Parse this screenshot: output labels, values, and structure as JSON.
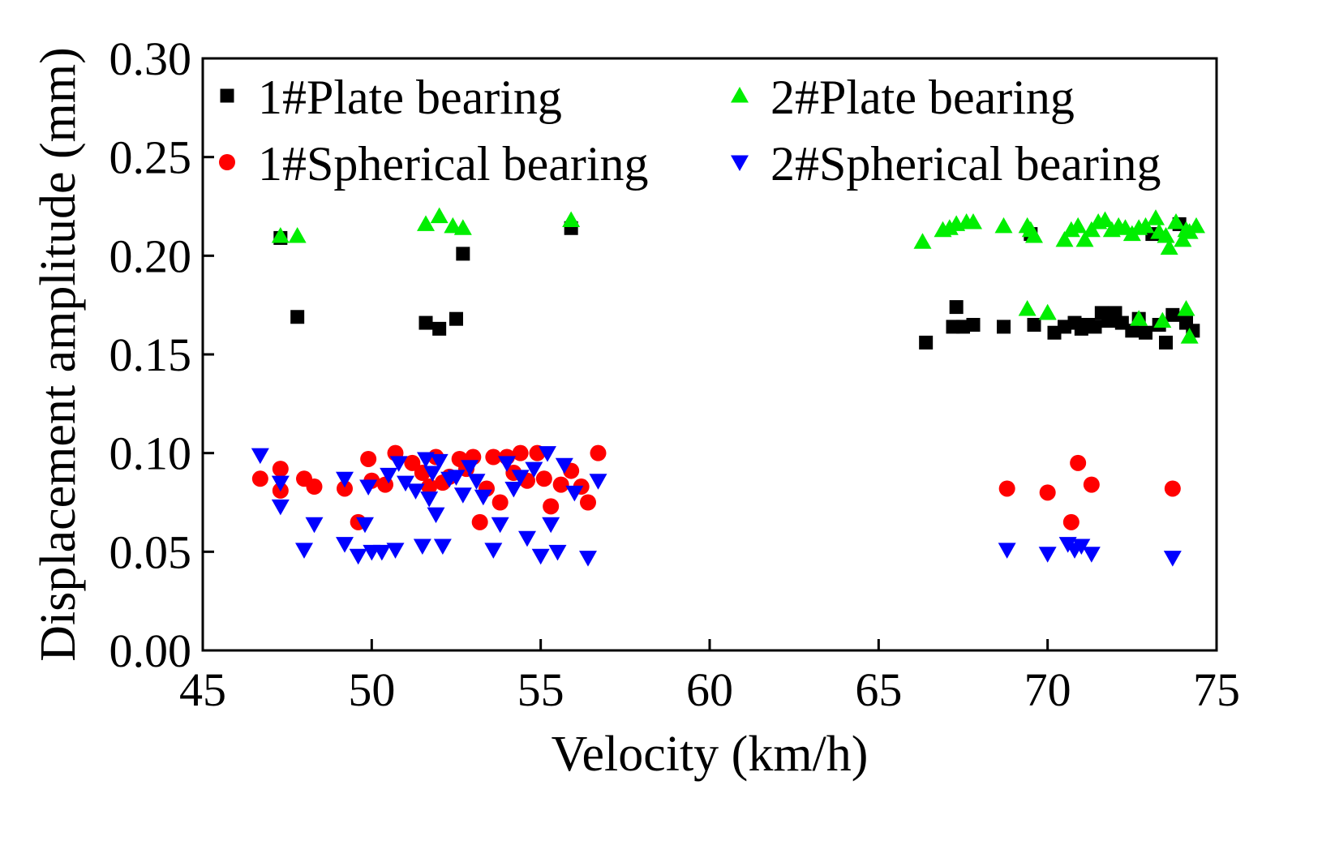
{
  "chart_data": {
    "type": "scatter",
    "title": "",
    "xlabel": "Velocity (km/h)",
    "ylabel": "Displacement amplitude (mm)",
    "xlim": [
      45,
      75
    ],
    "ylim": [
      0,
      0.3
    ],
    "xticks": [
      45,
      50,
      55,
      60,
      65,
      70,
      75
    ],
    "yticks": [
      0.0,
      0.05,
      0.1,
      0.15,
      0.2,
      0.25,
      0.3
    ],
    "xtick_labels": [
      "45",
      "50",
      "55",
      "60",
      "65",
      "70",
      "75"
    ],
    "ytick_labels": [
      "0.00",
      "0.05",
      "0.10",
      "0.15",
      "0.20",
      "0.25",
      "0.30"
    ],
    "grid": false,
    "legend_placement": "top, two columns",
    "series": [
      {
        "name": "1#Plate bearing",
        "marker": "square",
        "color": "#000000",
        "x": [
          47.3,
          47.8,
          51.6,
          52.0,
          52.5,
          52.7,
          55.9,
          66.4,
          67.2,
          67.3,
          67.5,
          67.8,
          68.7,
          69.5,
          69.6,
          70.2,
          70.5,
          70.8,
          71.0,
          71.2,
          71.4,
          71.6,
          71.8,
          72.0,
          72.2,
          72.5,
          72.7,
          72.9,
          73.1,
          73.3,
          73.5,
          73.7,
          73.9,
          74.1,
          74.3
        ],
        "y": [
          0.209,
          0.169,
          0.166,
          0.163,
          0.168,
          0.201,
          0.214,
          0.156,
          0.164,
          0.174,
          0.164,
          0.165,
          0.164,
          0.211,
          0.165,
          0.161,
          0.164,
          0.166,
          0.163,
          0.165,
          0.164,
          0.171,
          0.167,
          0.171,
          0.166,
          0.162,
          0.168,
          0.161,
          0.211,
          0.165,
          0.156,
          0.17,
          0.216,
          0.166,
          0.162
        ]
      },
      {
        "name": "1#Spherical bearing",
        "marker": "circle",
        "color": "#ff0000",
        "x": [
          46.7,
          47.3,
          47.3,
          48.0,
          48.3,
          49.2,
          49.6,
          49.9,
          50.0,
          50.4,
          50.7,
          51.2,
          51.5,
          51.7,
          51.9,
          52.1,
          52.3,
          52.6,
          52.8,
          53.0,
          53.2,
          53.4,
          53.6,
          53.8,
          54.0,
          54.2,
          54.4,
          54.6,
          54.9,
          55.1,
          55.3,
          55.6,
          55.9,
          56.2,
          56.4,
          56.7,
          68.8,
          70.0,
          70.7,
          70.9,
          71.3,
          73.7
        ],
        "y": [
          0.087,
          0.092,
          0.081,
          0.087,
          0.083,
          0.082,
          0.065,
          0.097,
          0.086,
          0.084,
          0.1,
          0.095,
          0.09,
          0.083,
          0.098,
          0.085,
          0.088,
          0.097,
          0.092,
          0.098,
          0.065,
          0.082,
          0.098,
          0.075,
          0.098,
          0.09,
          0.1,
          0.086,
          0.1,
          0.087,
          0.073,
          0.084,
          0.091,
          0.083,
          0.075,
          0.1,
          0.082,
          0.08,
          0.065,
          0.095,
          0.084,
          0.082
        ]
      },
      {
        "name": "2#Plate bearing",
        "marker": "triangle-up",
        "color": "#00ee00",
        "x": [
          47.3,
          47.8,
          51.6,
          52.0,
          52.4,
          52.7,
          55.9,
          66.3,
          66.9,
          67.1,
          67.3,
          67.6,
          67.8,
          68.7,
          69.4,
          69.5,
          69.6,
          70.0,
          70.5,
          70.7,
          70.9,
          71.1,
          71.3,
          71.5,
          71.7,
          71.9,
          72.1,
          72.3,
          72.5,
          72.7,
          72.9,
          73.2,
          73.3,
          73.5,
          73.6,
          73.8,
          74.0,
          74.1,
          74.2,
          74.4,
          69.4,
          70.0,
          72.7,
          73.4,
          74.1,
          74.2
        ],
        "y": [
          0.21,
          0.21,
          0.216,
          0.22,
          0.215,
          0.214,
          0.218,
          0.207,
          0.213,
          0.214,
          0.216,
          0.217,
          0.217,
          0.215,
          0.215,
          0.213,
          0.21,
          0.171,
          0.208,
          0.213,
          0.215,
          0.208,
          0.213,
          0.217,
          0.218,
          0.213,
          0.215,
          0.214,
          0.211,
          0.214,
          0.215,
          0.219,
          0.212,
          0.21,
          0.204,
          0.217,
          0.208,
          0.213,
          0.212,
          0.215,
          0.173,
          0.171,
          0.168,
          0.167,
          0.173,
          0.159
        ]
      },
      {
        "name": "2#Spherical bearing",
        "marker": "triangle-down",
        "color": "#0000ff",
        "x": [
          46.7,
          47.3,
          47.3,
          48.0,
          48.3,
          49.2,
          49.2,
          49.6,
          49.8,
          49.9,
          50.0,
          50.3,
          50.5,
          50.7,
          50.8,
          51.0,
          51.3,
          51.5,
          51.6,
          51.7,
          51.8,
          51.9,
          52.0,
          52.1,
          52.3,
          52.5,
          52.7,
          52.9,
          53.1,
          53.3,
          53.6,
          53.8,
          54.0,
          54.2,
          54.4,
          54.6,
          54.8,
          55.0,
          55.2,
          55.3,
          55.5,
          55.7,
          56.0,
          56.4,
          56.7,
          68.8,
          70.0,
          70.6,
          70.8,
          71.0,
          71.3,
          73.7
        ],
        "y": [
          0.099,
          0.085,
          0.073,
          0.051,
          0.064,
          0.054,
          0.087,
          0.048,
          0.064,
          0.083,
          0.05,
          0.05,
          0.089,
          0.051,
          0.095,
          0.085,
          0.081,
          0.053,
          0.097,
          0.077,
          0.09,
          0.069,
          0.096,
          0.053,
          0.087,
          0.088,
          0.079,
          0.093,
          0.086,
          0.078,
          0.051,
          0.064,
          0.095,
          0.082,
          0.088,
          0.057,
          0.092,
          0.048,
          0.1,
          0.064,
          0.05,
          0.094,
          0.08,
          0.047,
          0.086,
          0.051,
          0.049,
          0.054,
          0.051,
          0.053,
          0.049,
          0.047
        ]
      }
    ]
  }
}
